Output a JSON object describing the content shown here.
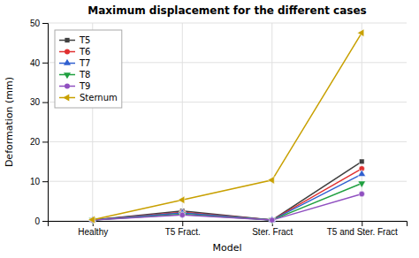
{
  "chart_data": {
    "type": "line",
    "title": "Maximum displacement for the different cases",
    "xlabel": "Model",
    "ylabel": "Deformation (mm)",
    "categories": [
      "Healthy",
      "T5 Fract.",
      "Ster. Fract",
      "T5 and Ster. Fract"
    ],
    "series": [
      {
        "name": "T5",
        "color": "#404040",
        "marker": "square",
        "values": [
          0.2,
          2.5,
          0.2,
          15.0
        ]
      },
      {
        "name": "T6",
        "color": "#e03030",
        "marker": "circle",
        "values": [
          0.2,
          2.2,
          0.2,
          13.2
        ]
      },
      {
        "name": "T7",
        "color": "#3060d0",
        "marker": "triangle-up",
        "values": [
          0.2,
          2.0,
          0.2,
          11.8
        ]
      },
      {
        "name": "T8",
        "color": "#20a040",
        "marker": "triangle-down",
        "values": [
          0.2,
          1.7,
          0.2,
          9.5
        ]
      },
      {
        "name": "T9",
        "color": "#9050c0",
        "marker": "circle",
        "values": [
          0.2,
          1.5,
          0.2,
          6.8
        ]
      },
      {
        "name": "Sternum",
        "color": "#c8a000",
        "marker": "triangle-left",
        "values": [
          0.3,
          5.3,
          10.3,
          47.5
        ]
      }
    ],
    "ylim": [
      0,
      50
    ],
    "yticks": [
      0,
      10,
      20,
      30,
      40,
      50
    ],
    "grid": true,
    "legend": "upper left"
  }
}
